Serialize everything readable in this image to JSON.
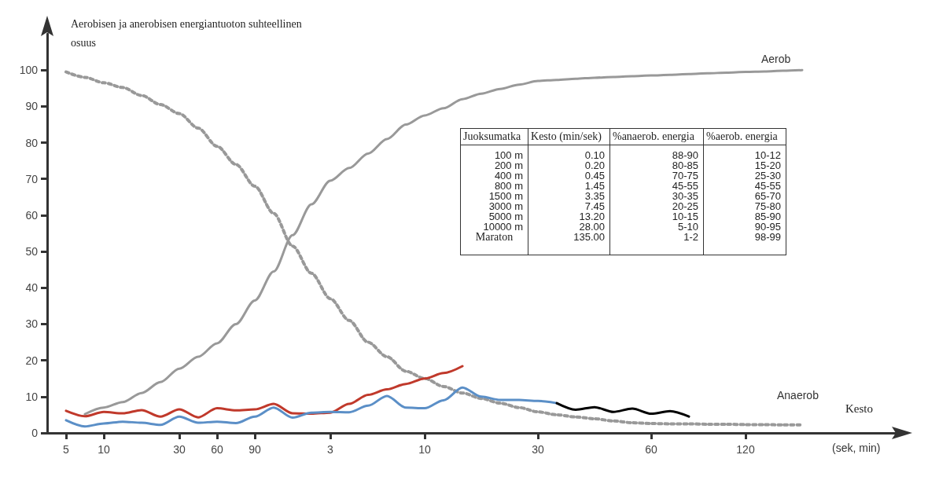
{
  "chart_data": [
    {
      "type": "line",
      "ylabel": "Aerobisen ja anerobisen energiantuoton suhteellinen osuus",
      "xlabel": "Kesto",
      "annotations": [
        "(sek, min)"
      ],
      "categories": [
        null,
        "5",
        null,
        "10",
        null,
        null,
        null,
        "30",
        null,
        "60",
        null,
        "90",
        null,
        null,
        null,
        "3",
        null,
        null,
        null,
        null,
        "10",
        null,
        null,
        null,
        null,
        null,
        "30",
        null,
        null,
        null,
        null,
        null,
        "60",
        null,
        null,
        null,
        null,
        "120",
        null,
        null,
        null,
        null,
        null,
        null,
        null,
        null
      ],
      "ylim": [
        0,
        110
      ],
      "yticks": [
        0,
        10,
        20,
        30,
        40,
        50,
        60,
        70,
        80,
        90,
        100
      ],
      "grid": false,
      "marker": "none",
      "series": [
        {
          "name": "Aerob",
          "color": "#999999",
          "line_style": "solid",
          "values": [
            null,
            null,
            5.2,
            7,
            8.5,
            11,
            14,
            17.7,
            21,
            24.7,
            30,
            36.5,
            44.5,
            54.5,
            63,
            69.5,
            73,
            77,
            81,
            85,
            87.5,
            89.5,
            92,
            93.5,
            94.8,
            96,
            97,
            97.3,
            97.6,
            97.9,
            98.1,
            98.3,
            98.5,
            98.7,
            98.9,
            99.1,
            99.3,
            99.5,
            99.6,
            99.8,
            100,
            null,
            null,
            null,
            null,
            null
          ]
        },
        {
          "name": "Anaerob",
          "color": "#999999",
          "line_style": "dotted",
          "values": [
            null,
            99.5,
            98,
            96.5,
            95.2,
            93,
            90.5,
            88,
            84,
            79,
            74,
            68,
            60.5,
            51.5,
            44,
            37,
            31,
            25,
            21,
            17,
            15,
            12.8,
            11,
            9.5,
            8.2,
            7,
            5.8,
            5,
            4.4,
            3.9,
            3.3,
            2.8,
            2.6,
            2.5,
            2.5,
            2.4,
            2.4,
            2.3,
            2.3,
            2.2,
            2.2,
            null,
            null,
            null,
            null,
            null
          ]
        },
        {
          "color": "#c0392b",
          "line_style": "solid",
          "values": [
            null,
            6.1,
            4.6,
            5.8,
            5.4,
            6.3,
            4.5,
            6.5,
            4.3,
            6.8,
            6.2,
            6.5,
            8,
            5.4,
            5.3,
            5.6,
            8,
            10.5,
            12,
            13.5,
            15,
            16.5,
            18.4,
            null,
            null,
            null,
            null,
            null,
            null,
            null,
            null,
            null,
            null,
            null,
            null,
            null,
            null,
            null,
            null,
            null,
            null,
            null,
            null,
            null,
            null,
            null
          ]
        },
        {
          "color": "#5b8fc7",
          "line_style": "solid",
          "values": [
            null,
            3.5,
            1.8,
            2.6,
            3.1,
            2.8,
            2.2,
            4.5,
            2.8,
            3.1,
            2.7,
            4.5,
            7,
            4.2,
            5.6,
            5.8,
            5.7,
            7.5,
            10.2,
            7,
            6.8,
            9,
            12.5,
            10,
            9.1,
            9.1,
            8.8,
            8.2,
            null,
            null,
            null,
            null,
            null,
            null,
            null,
            null,
            null,
            null,
            null,
            null,
            null,
            null,
            null,
            null,
            null,
            null
          ]
        },
        {
          "color": "#000000",
          "line_style": "solid",
          "values": [
            null,
            null,
            null,
            null,
            null,
            null,
            null,
            null,
            null,
            null,
            null,
            null,
            null,
            null,
            null,
            null,
            null,
            null,
            null,
            null,
            null,
            null,
            null,
            null,
            null,
            null,
            null,
            8.2,
            6.4,
            7.1,
            5.8,
            6.7,
            5.3,
            6,
            4.5,
            null,
            null,
            null,
            null,
            null,
            null,
            null,
            null,
            null,
            null,
            null
          ]
        }
      ]
    },
    {
      "type": "other",
      "annotations": [
        "Juoksumatka",
        "Kesto (min/sek)",
        "%anaerob. energia",
        "%aerob. energia",
        "100 m",
        "0.10",
        "88-90",
        "10-12",
        "200 m",
        "0.20",
        "80-85",
        "15-20",
        "400 m",
        "0.45",
        "70-75",
        "25-30",
        "800 m",
        "1.45",
        "45-55",
        "45-55",
        "1500 m",
        "3.35",
        "30-35",
        "65-70",
        "3000 m",
        "7.45",
        "20-25",
        "75-80",
        "5000 m",
        "13.20",
        "10-15",
        "85-90",
        "10000 m",
        "28.00",
        "5-10",
        "90-95",
        "Maraton",
        "135.00",
        "1-2",
        "98-99"
      ]
    }
  ]
}
